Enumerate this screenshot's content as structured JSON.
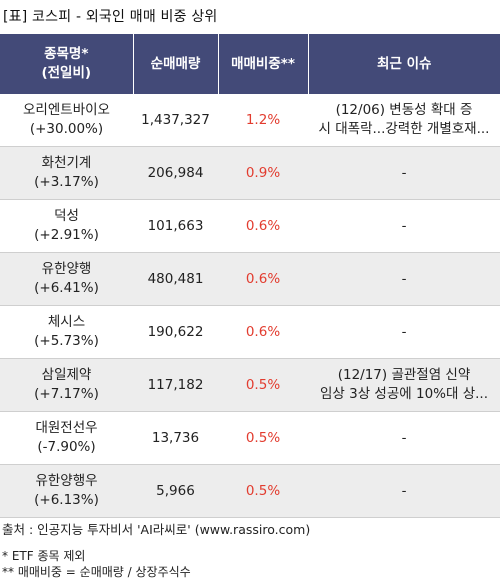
{
  "caption": "[표] 코스피 - 외국인 매매 비중 상위",
  "headers": {
    "name_line1": "종목명*",
    "name_line2": "(전일비)",
    "volume": "순매매량",
    "ratio": "매매비중**",
    "issue": "최근 이슈"
  },
  "rows": [
    {
      "name": "오리엔트바이오",
      "change": "(+30.00%)",
      "volume": "1,437,327",
      "ratio": "1.2%",
      "issue1": "(12/06) 변동성 확대 증",
      "issue2": "시 대폭락...강력한 개별호재..."
    },
    {
      "name": "화천기계",
      "change": "(+3.17%)",
      "volume": "206,984",
      "ratio": "0.9%",
      "issue1": "-",
      "issue2": ""
    },
    {
      "name": "덕성",
      "change": "(+2.91%)",
      "volume": "101,663",
      "ratio": "0.6%",
      "issue1": "-",
      "issue2": ""
    },
    {
      "name": "유한양행",
      "change": "(+6.41%)",
      "volume": "480,481",
      "ratio": "0.6%",
      "issue1": "-",
      "issue2": ""
    },
    {
      "name": "체시스",
      "change": "(+5.73%)",
      "volume": "190,622",
      "ratio": "0.6%",
      "issue1": "-",
      "issue2": ""
    },
    {
      "name": "삼일제약",
      "change": "(+7.17%)",
      "volume": "117,182",
      "ratio": "0.5%",
      "issue1": "(12/17) 골관절염 신약",
      "issue2": "임상 3상 성공에 10%대 상..."
    },
    {
      "name": "대원전선우",
      "change": "(-7.90%)",
      "volume": "13,736",
      "ratio": "0.5%",
      "issue1": "-",
      "issue2": ""
    },
    {
      "name": "유한양행우",
      "change": "(+6.13%)",
      "volume": "5,966",
      "ratio": "0.5%",
      "issue1": "-",
      "issue2": ""
    }
  ],
  "source": "출처 : 인공지능 투자비서 'AI라씨로' (www.rassiro.com)",
  "notes": {
    "note1": "* ETF 종목 제외",
    "note2": "** 매매비중 = 순매매량 / 상장주식수"
  },
  "colors": {
    "header_bg": "#434a78",
    "ratio_text": "#e23c2f",
    "shaded_row": "#ededed"
  }
}
